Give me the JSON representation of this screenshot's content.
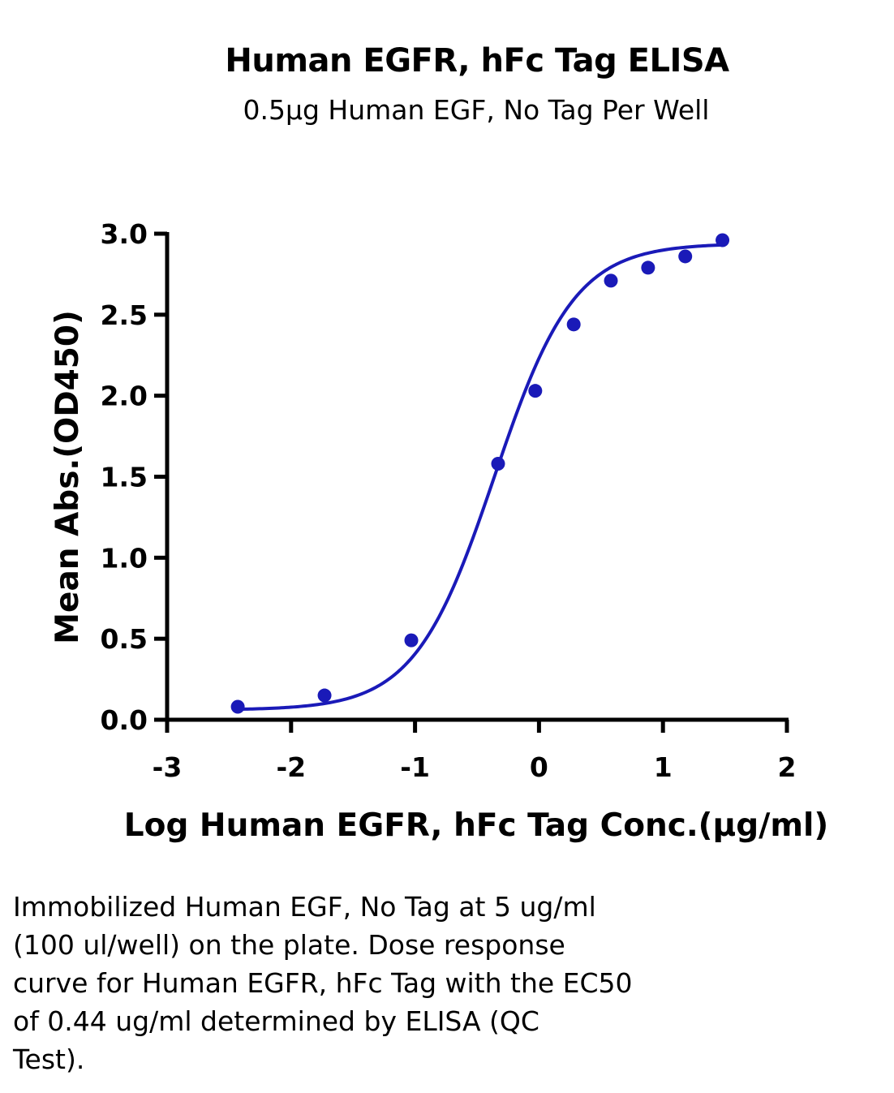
{
  "chart_data": {
    "type": "scatter",
    "title": "Human EGFR, hFc Tag ELISA",
    "subtitle": "0.5μg Human EGF, No Tag Per Well",
    "xlabel": "Log Human EGFR, hFc Tag Conc.(μg/ml)",
    "ylabel": "Mean Abs.(OD450)",
    "xlim": [
      -3,
      2
    ],
    "ylim": [
      0,
      3
    ],
    "x_ticks": [
      "-3",
      "-2",
      "-1",
      "0",
      "1",
      "2"
    ],
    "y_ticks": [
      "0.0",
      "0.5",
      "1.0",
      "1.5",
      "2.0",
      "2.5",
      "3.0"
    ],
    "grid": false,
    "legend": "none",
    "color": "#1a1ab8",
    "series": [
      {
        "points": [
          {
            "x": -2.43,
            "y": 0.08
          },
          {
            "x": -1.73,
            "y": 0.15
          },
          {
            "x": -1.03,
            "y": 0.49
          },
          {
            "x": -0.33,
            "y": 1.58
          },
          {
            "x": -0.03,
            "y": 2.03
          },
          {
            "x": 0.28,
            "y": 2.44
          },
          {
            "x": 0.58,
            "y": 2.71
          },
          {
            "x": 0.88,
            "y": 2.79
          },
          {
            "x": 1.18,
            "y": 2.86
          },
          {
            "x": 1.48,
            "y": 2.96
          }
        ],
        "fit_curve": {
          "model": "4PL",
          "bottom": 0.06,
          "top": 2.94,
          "log_ec50": -0.36,
          "hill_slope": 1.35
        }
      }
    ]
  },
  "caption": {
    "lines": [
      "Immobilized Human EGF, No Tag at 5 ug/ml",
      "(100 ul/well) on the plate. Dose response",
      "curve for Human EGFR, hFc Tag with the EC50",
      "of 0.44 ug/ml determined by ELISA (QC",
      "Test)."
    ]
  }
}
